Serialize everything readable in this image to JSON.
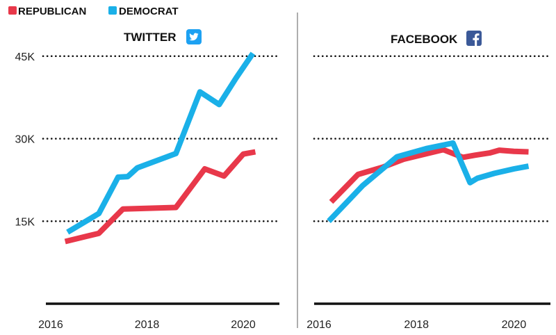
{
  "legend": [
    {
      "label": "REPUBLICAN",
      "color": "#e8384a"
    },
    {
      "label": "DEMOCRAT",
      "color": "#1ab0e8"
    }
  ],
  "colors": {
    "republican": "#e8384a",
    "democrat": "#1ab0e8",
    "twitter": "#1da1f2",
    "facebook": "#3b5998"
  },
  "chart_data": [
    {
      "type": "line",
      "title": "TWITTER",
      "icon": "twitter-icon",
      "ylim": [
        0,
        48000
      ],
      "yticks": [
        15000,
        30000,
        45000
      ],
      "ytick_labels": [
        "15K",
        "30K",
        "45K"
      ],
      "xlim": [
        2015.9,
        2020.75
      ],
      "xticks": [
        2016,
        2018,
        2020
      ],
      "xtick_labels": [
        "2016",
        "2018",
        "2020"
      ],
      "grid": "dotted at y ticks",
      "series": [
        {
          "name": "REPUBLICAN",
          "color": "#e8384a",
          "x": [
            2016.3,
            2017.0,
            2017.5,
            2018.6,
            2019.2,
            2019.6,
            2020.0,
            2020.25
          ],
          "y": [
            11300,
            12800,
            17200,
            17500,
            24500,
            23200,
            27200,
            27600
          ]
        },
        {
          "name": "DEMOCRAT",
          "color": "#1ab0e8",
          "x": [
            2016.35,
            2017.0,
            2017.4,
            2017.6,
            2017.8,
            2018.6,
            2019.1,
            2019.5,
            2019.85,
            2020.2
          ],
          "y": [
            13000,
            16400,
            23000,
            23100,
            24700,
            27300,
            38500,
            36200,
            41000,
            45500
          ]
        }
      ]
    },
    {
      "type": "line",
      "title": "FACEBOOK",
      "icon": "facebook-icon",
      "ylim": [
        0,
        48000
      ],
      "yticks": [
        15000,
        30000,
        45000
      ],
      "ytick_labels": [
        "",
        "",
        ""
      ],
      "xlim": [
        2015.9,
        2020.75
      ],
      "xticks": [
        2016,
        2018,
        2020
      ],
      "xtick_labels": [
        "2016",
        "2018",
        "2020"
      ],
      "grid": "dotted at y ticks",
      "series": [
        {
          "name": "REPUBLICAN",
          "color": "#e8384a",
          "x": [
            2016.25,
            2016.8,
            2017.3,
            2017.75,
            2018.55,
            2018.95,
            2019.2,
            2019.5,
            2019.7,
            2020.0,
            2020.3
          ],
          "y": [
            18500,
            23500,
            24800,
            26300,
            28000,
            26600,
            27000,
            27400,
            27900,
            27700,
            27600
          ]
        },
        {
          "name": "DEMOCRAT",
          "color": "#1ab0e8",
          "x": [
            2016.2,
            2016.9,
            2017.6,
            2018.2,
            2018.75,
            2019.1,
            2019.25,
            2019.6,
            2020.0,
            2020.3
          ],
          "y": [
            15000,
            21500,
            26700,
            28200,
            29200,
            22000,
            22800,
            23700,
            24500,
            25000
          ]
        }
      ]
    }
  ]
}
